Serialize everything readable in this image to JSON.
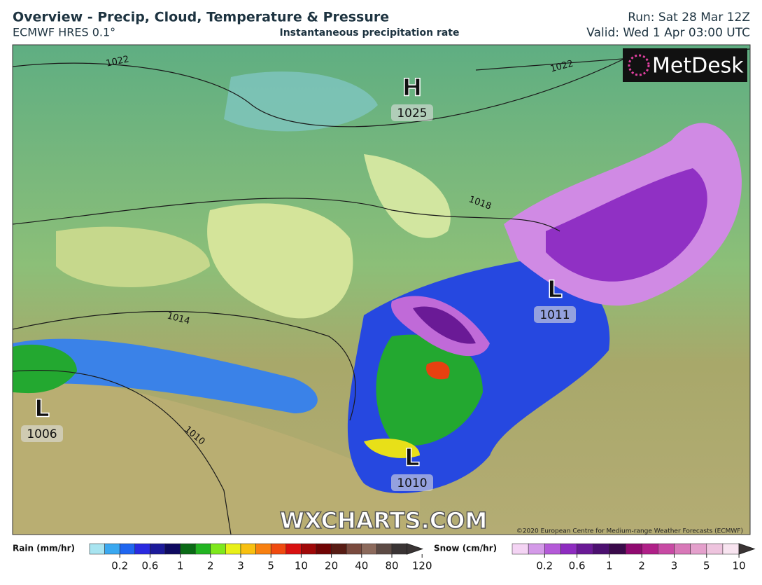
{
  "header": {
    "title": "Overview - Precip, Cloud, Temperature & Pressure",
    "model": "ECMWF HRES 0.1°",
    "subtitle": "Instantaneous precipitation rate",
    "run": "Run: Sat 28 Mar 12Z",
    "valid": "Valid: Wed 1 Apr 03:00 UTC"
  },
  "map": {
    "logo": "MetDesk",
    "watermark": "WXCHARTS.COM",
    "copyright": "©2020 European Centre for Medium-range Weather Forecasts (ECMWF)",
    "centers": [
      {
        "letter": "H",
        "pressure": "1025"
      },
      {
        "letter": "L",
        "pressure": "1011"
      },
      {
        "letter": "L",
        "pressure": "1006"
      },
      {
        "letter": "L",
        "pressure": "1010"
      }
    ],
    "isobar_labels": [
      "1022",
      "1022",
      "1018",
      "1014",
      "1010"
    ]
  },
  "legends": [
    {
      "label": "Rain (mm/hr)",
      "ticks": [
        "0.2",
        "0.6",
        "1",
        "2",
        "3",
        "5",
        "10",
        "20",
        "40",
        "80",
        "120"
      ],
      "colors": [
        "#a8e4f0",
        "#3aa8f0",
        "#1f66f0",
        "#2a2ae0",
        "#1c1a9a",
        "#0e0a60",
        "#0a6a16",
        "#22b422",
        "#7ee81c",
        "#e8f018",
        "#f8c010",
        "#f88010",
        "#f04a10",
        "#d81010",
        "#a00808",
        "#700404",
        "#581c14",
        "#7a4a3e",
        "#8c6a5c",
        "#5c4a44",
        "#3a3434"
      ]
    },
    {
      "label": "Snow (cm/hr)",
      "ticks": [
        "0.2",
        "0.6",
        "1",
        "2",
        "3",
        "5",
        "10"
      ],
      "colors": [
        "#f4d4f4",
        "#d49ae8",
        "#b45ad8",
        "#8e2cc0",
        "#6a1a96",
        "#4c1070",
        "#3a0a4a",
        "#900a70",
        "#b02088",
        "#c84aa4",
        "#d878b8",
        "#e4a0cc",
        "#eec4de",
        "#f8e4f0"
      ]
    }
  ]
}
